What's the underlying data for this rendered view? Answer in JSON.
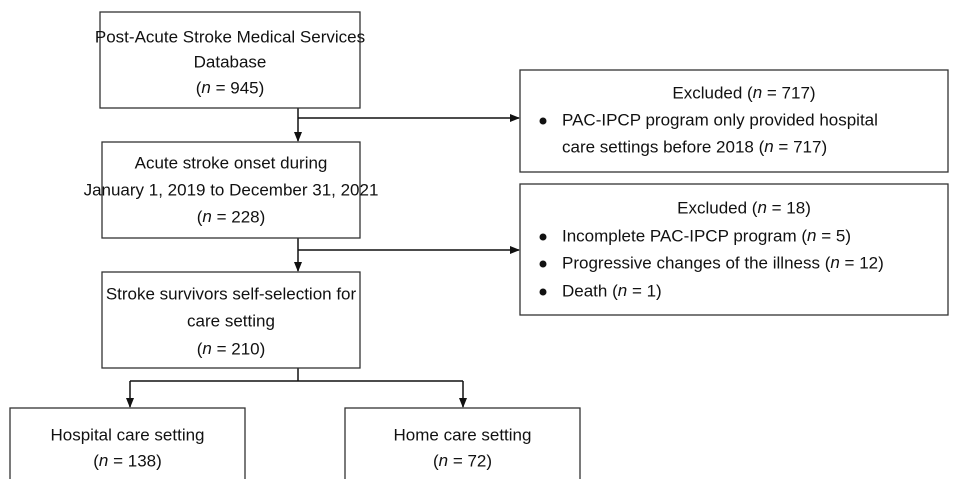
{
  "nodes": [
    {
      "lines": [
        "Post-Acute Stroke Medical Services",
        "Database",
        "(n = 945)"
      ]
    },
    {
      "lines": [
        "Acute stroke onset during",
        "January 1, 2019 to December 31, 2021",
        "(n = 228)"
      ]
    },
    {
      "lines": [
        "Stroke survivors self-selection for",
        "care setting",
        "(n = 210)"
      ]
    },
    {
      "lines": [
        "Hospital care setting",
        "(n = 138)"
      ]
    },
    {
      "lines": [
        "Home care setting",
        "(n = 72)"
      ]
    }
  ],
  "exclusions": [
    {
      "title": "Excluded (n = 717)",
      "bullets": [
        [
          "PAC-IPCP program only provided hospital",
          "care settings before 2018 (n = 717)"
        ]
      ]
    },
    {
      "title": "Excluded (n = 18)",
      "bullets": [
        [
          "Incomplete PAC-IPCP program (n = 5)"
        ],
        [
          "Progressive changes of the illness (n = 12)"
        ],
        [
          "Death (n = 1)"
        ]
      ]
    }
  ]
}
